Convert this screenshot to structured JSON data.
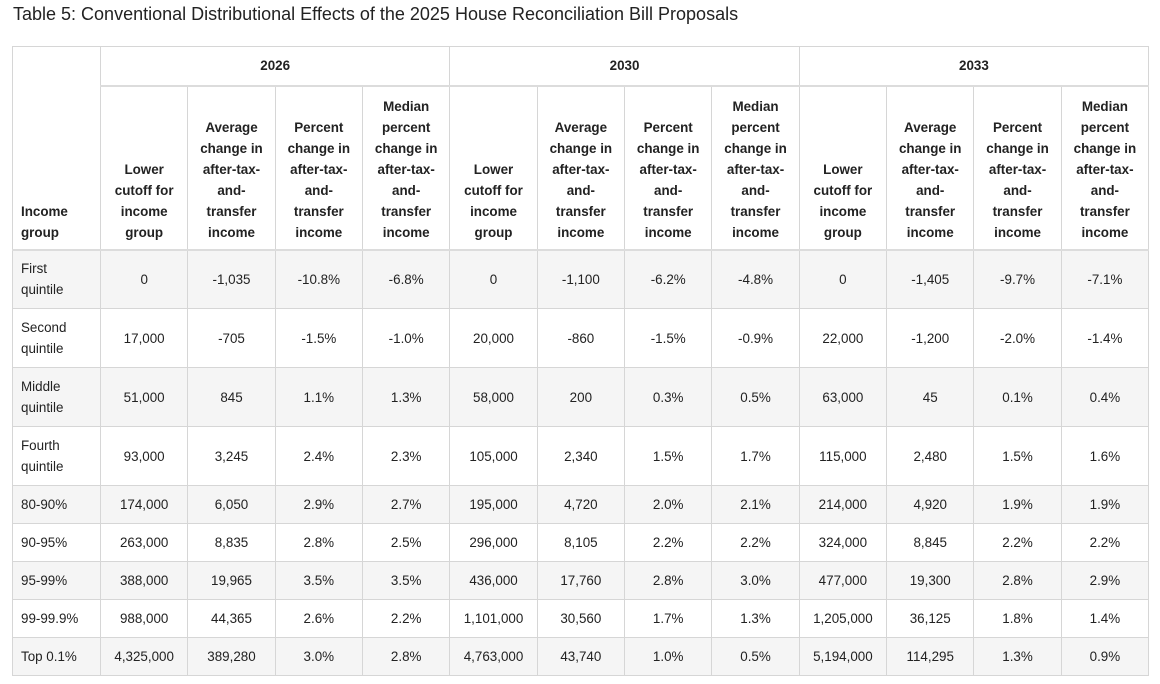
{
  "title": "Table 5: Conventional Distributional Effects of the 2025 House Reconciliation Bill Proposals",
  "header": {
    "group_label": [
      "Income",
      "group"
    ],
    "years": [
      "2026",
      "2030",
      "2033"
    ],
    "columns": [
      [
        "Lower",
        "cutoff for",
        "income",
        "group"
      ],
      [
        "Average",
        "change in",
        "after-tax-",
        "and-",
        "transfer",
        "income"
      ],
      [
        "Percent",
        "change in",
        "after-tax-",
        "and-",
        "transfer",
        "income"
      ],
      [
        "Median",
        "percent",
        "change in",
        "after-tax-",
        "and-",
        "transfer",
        "income"
      ]
    ]
  },
  "rows": [
    {
      "group": [
        "First",
        "quintile"
      ],
      "values": [
        "0",
        "-1,035",
        "-10.8%",
        "-6.8%",
        "0",
        "-1,100",
        "-6.2%",
        "-4.8%",
        "0",
        "-1,405",
        "-9.7%",
        "-7.1%"
      ]
    },
    {
      "group": [
        "Second",
        "quintile"
      ],
      "values": [
        "17,000",
        "-705",
        "-1.5%",
        "-1.0%",
        "20,000",
        "-860",
        "-1.5%",
        "-0.9%",
        "22,000",
        "-1,200",
        "-2.0%",
        "-1.4%"
      ]
    },
    {
      "group": [
        "Middle",
        "quintile"
      ],
      "values": [
        "51,000",
        "845",
        "1.1%",
        "1.3%",
        "58,000",
        "200",
        "0.3%",
        "0.5%",
        "63,000",
        "45",
        "0.1%",
        "0.4%"
      ]
    },
    {
      "group": [
        "Fourth",
        "quintile"
      ],
      "values": [
        "93,000",
        "3,245",
        "2.4%",
        "2.3%",
        "105,000",
        "2,340",
        "1.5%",
        "1.7%",
        "115,000",
        "2,480",
        "1.5%",
        "1.6%"
      ]
    },
    {
      "group": [
        "80-90%"
      ],
      "values": [
        "174,000",
        "6,050",
        "2.9%",
        "2.7%",
        "195,000",
        "4,720",
        "2.0%",
        "2.1%",
        "214,000",
        "4,920",
        "1.9%",
        "1.9%"
      ]
    },
    {
      "group": [
        "90-95%"
      ],
      "values": [
        "263,000",
        "8,835",
        "2.8%",
        "2.5%",
        "296,000",
        "8,105",
        "2.2%",
        "2.2%",
        "324,000",
        "8,845",
        "2.2%",
        "2.2%"
      ]
    },
    {
      "group": [
        "95-99%"
      ],
      "values": [
        "388,000",
        "19,965",
        "3.5%",
        "3.5%",
        "436,000",
        "17,760",
        "2.8%",
        "3.0%",
        "477,000",
        "19,300",
        "2.8%",
        "2.9%"
      ]
    },
    {
      "group": [
        "99-99.9%"
      ],
      "values": [
        "988,000",
        "44,365",
        "2.6%",
        "2.2%",
        "1,101,000",
        "30,560",
        "1.7%",
        "1.3%",
        "1,205,000",
        "36,125",
        "1.8%",
        "1.4%"
      ]
    },
    {
      "group": [
        "Top 0.1%"
      ],
      "values": [
        "4,325,000",
        "389,280",
        "3.0%",
        "2.8%",
        "4,763,000",
        "43,740",
        "1.0%",
        "0.5%",
        "5,194,000",
        "114,295",
        "1.3%",
        "0.9%"
      ]
    }
  ]
}
